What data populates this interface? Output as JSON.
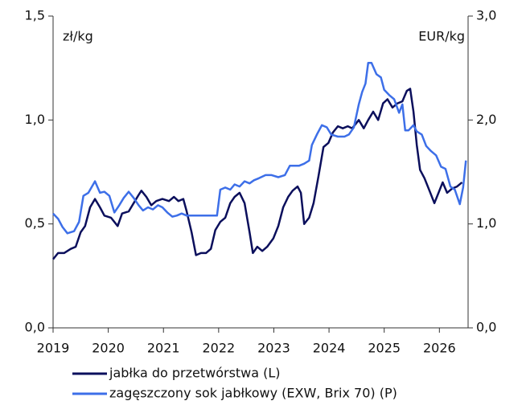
{
  "chart_data": {
    "type": "line",
    "ylabel": "zł/kg",
    "y2label": "EUR/kg",
    "xlim": [
      2019,
      2026.52
    ],
    "xticks": [
      2019,
      2020,
      2021,
      2022,
      2023,
      2024,
      2025,
      2026
    ],
    "ylim": [
      0,
      1.5
    ],
    "yticks": [
      {
        "value": 0,
        "label": "0,0"
      },
      {
        "value": 0.5,
        "label": "0,5"
      },
      {
        "value": 1,
        "label": "1,0"
      },
      {
        "value": 1.5,
        "label": "1,5"
      }
    ],
    "y2lim": [
      0,
      3
    ],
    "y2ticks": [
      {
        "value": 0,
        "label": "0,0"
      },
      {
        "value": 1,
        "label": "1,0"
      },
      {
        "value": 2,
        "label": "2,0"
      },
      {
        "value": 3,
        "label": "3,0"
      }
    ],
    "grid": false,
    "legend": "bottom",
    "series": [
      {
        "name": "jabłka do przetwórstwa (L)",
        "color": "#0b0f5c",
        "axis": "y",
        "x": [
          2019.0,
          2019.09,
          2019.2,
          2019.32,
          2019.41,
          2019.5,
          2019.58,
          2019.67,
          2019.76,
          2019.85,
          2019.93,
          2020.05,
          2020.17,
          2020.25,
          2020.37,
          2020.46,
          2020.55,
          2020.6,
          2020.69,
          2020.78,
          2020.87,
          2020.98,
          2021.1,
          2021.19,
          2021.27,
          2021.36,
          2021.42,
          2021.51,
          2021.59,
          2021.68,
          2021.77,
          2021.86,
          2021.94,
          2022.03,
          2022.12,
          2022.21,
          2022.29,
          2022.38,
          2022.47,
          2022.56,
          2022.62,
          2022.7,
          2022.79,
          2022.88,
          2022.99,
          2023.08,
          2023.17,
          2023.26,
          2023.34,
          2023.43,
          2023.49,
          2023.55,
          2023.64,
          2023.72,
          2023.81,
          2023.9,
          2023.99,
          2024.07,
          2024.16,
          2024.25,
          2024.34,
          2024.42,
          2024.54,
          2024.63,
          2024.71,
          2024.8,
          2024.89,
          2024.98,
          2025.06,
          2025.15,
          2025.24,
          2025.33,
          2025.41,
          2025.47,
          2025.53,
          2025.59,
          2025.65,
          2025.73,
          2025.82,
          2025.91,
          2026.0,
          2026.06,
          2026.14,
          2026.23,
          2026.32,
          2026.41
        ],
        "values": [
          0.33,
          0.36,
          0.36,
          0.38,
          0.39,
          0.46,
          0.49,
          0.58,
          0.62,
          0.58,
          0.54,
          0.53,
          0.49,
          0.55,
          0.56,
          0.6,
          0.64,
          0.66,
          0.63,
          0.59,
          0.61,
          0.62,
          0.61,
          0.63,
          0.61,
          0.62,
          0.56,
          0.46,
          0.35,
          0.36,
          0.36,
          0.38,
          0.47,
          0.51,
          0.53,
          0.6,
          0.63,
          0.65,
          0.6,
          0.46,
          0.36,
          0.39,
          0.37,
          0.39,
          0.43,
          0.49,
          0.58,
          0.63,
          0.66,
          0.68,
          0.65,
          0.5,
          0.53,
          0.6,
          0.73,
          0.87,
          0.89,
          0.94,
          0.97,
          0.96,
          0.97,
          0.96,
          1.0,
          0.96,
          1.0,
          1.04,
          1.0,
          1.08,
          1.1,
          1.06,
          1.08,
          1.09,
          1.14,
          1.15,
          1.04,
          0.88,
          0.76,
          0.72,
          0.66,
          0.6,
          0.66,
          0.7,
          0.65,
          0.67,
          0.68,
          0.7
        ]
      },
      {
        "name": "zagęszczony sok jabłkowy (EXW, Brix 70) (P)",
        "color": "#3d6fe8",
        "axis": "y2",
        "x": [
          2019.0,
          2019.09,
          2019.17,
          2019.26,
          2019.38,
          2019.47,
          2019.55,
          2019.64,
          2019.76,
          2019.85,
          2019.93,
          2020.02,
          2020.11,
          2020.2,
          2020.28,
          2020.37,
          2020.46,
          2020.55,
          2020.63,
          2020.72,
          2020.81,
          2020.9,
          2020.98,
          2021.07,
          2021.16,
          2021.24,
          2021.33,
          2021.42,
          2021.54,
          2021.65,
          2021.77,
          2021.89,
          2021.97,
          2022.03,
          2022.12,
          2022.21,
          2022.29,
          2022.38,
          2022.47,
          2022.56,
          2022.64,
          2022.73,
          2022.85,
          2022.96,
          2023.08,
          2023.2,
          2023.29,
          2023.37,
          2023.46,
          2023.55,
          2023.64,
          2023.69,
          2023.78,
          2023.87,
          2023.96,
          2024.04,
          2024.16,
          2024.28,
          2024.36,
          2024.45,
          2024.54,
          2024.6,
          2024.66,
          2024.71,
          2024.77,
          2024.86,
          2024.94,
          2025.0,
          2025.09,
          2025.18,
          2025.27,
          2025.33,
          2025.38,
          2025.44,
          2025.53,
          2025.59,
          2025.68,
          2025.76,
          2025.85,
          2025.94,
          2026.03,
          2026.11,
          2026.2,
          2026.28,
          2026.37,
          2026.43,
          2026.48
        ],
        "values": [
          1.1,
          1.05,
          0.97,
          0.91,
          0.93,
          1.02,
          1.27,
          1.3,
          1.41,
          1.3,
          1.31,
          1.27,
          1.11,
          1.18,
          1.25,
          1.31,
          1.25,
          1.18,
          1.13,
          1.16,
          1.14,
          1.18,
          1.16,
          1.11,
          1.07,
          1.08,
          1.1,
          1.08,
          1.08,
          1.08,
          1.08,
          1.08,
          1.08,
          1.33,
          1.35,
          1.33,
          1.38,
          1.36,
          1.41,
          1.39,
          1.42,
          1.44,
          1.47,
          1.47,
          1.45,
          1.47,
          1.56,
          1.56,
          1.56,
          1.58,
          1.61,
          1.76,
          1.86,
          1.95,
          1.93,
          1.86,
          1.84,
          1.84,
          1.86,
          1.93,
          2.15,
          2.27,
          2.35,
          2.55,
          2.55,
          2.44,
          2.41,
          2.29,
          2.24,
          2.2,
          2.07,
          2.15,
          1.9,
          1.9,
          1.95,
          1.89,
          1.86,
          1.75,
          1.7,
          1.66,
          1.55,
          1.53,
          1.36,
          1.33,
          1.19,
          1.35,
          1.61
        ]
      }
    ]
  }
}
